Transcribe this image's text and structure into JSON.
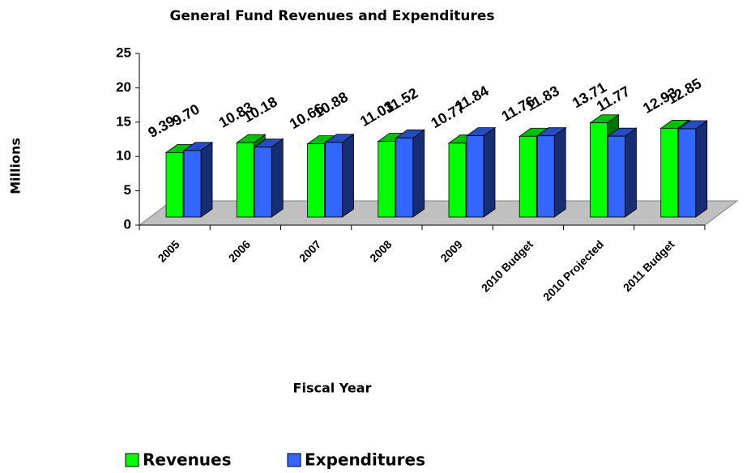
{
  "chart_data": {
    "type": "bar3d",
    "title": "General Fund Revenues and Expenditures",
    "x_label": "Fiscal Year",
    "y_label": "Millions",
    "categories": [
      "2005",
      "2006",
      "2007",
      "2008",
      "2009",
      "2010 Budget",
      "2010 Projected",
      "2011 Budget"
    ],
    "series": [
      {
        "name": "Revenues",
        "color": "#00ff00",
        "values": [
          9.39,
          10.83,
          10.66,
          11.03,
          10.77,
          11.76,
          13.71,
          12.93
        ],
        "value_labels": [
          "9.39",
          "10.83",
          "10.66",
          "11.03",
          "10.77",
          "11.76",
          "13.71",
          "12.93"
        ]
      },
      {
        "name": "Expenditures",
        "color": "#3366ff",
        "values": [
          9.7,
          10.18,
          10.88,
          11.52,
          11.84,
          11.83,
          11.77,
          12.85
        ],
        "value_labels": [
          "9.70",
          "10.18",
          "10.88",
          "11.52",
          "11.84",
          "11.83",
          "11.77",
          "12.85"
        ]
      }
    ],
    "ylim": [
      0,
      25
    ],
    "yticks": [
      0,
      5,
      10,
      15,
      20,
      25
    ],
    "legend": "bottom"
  }
}
